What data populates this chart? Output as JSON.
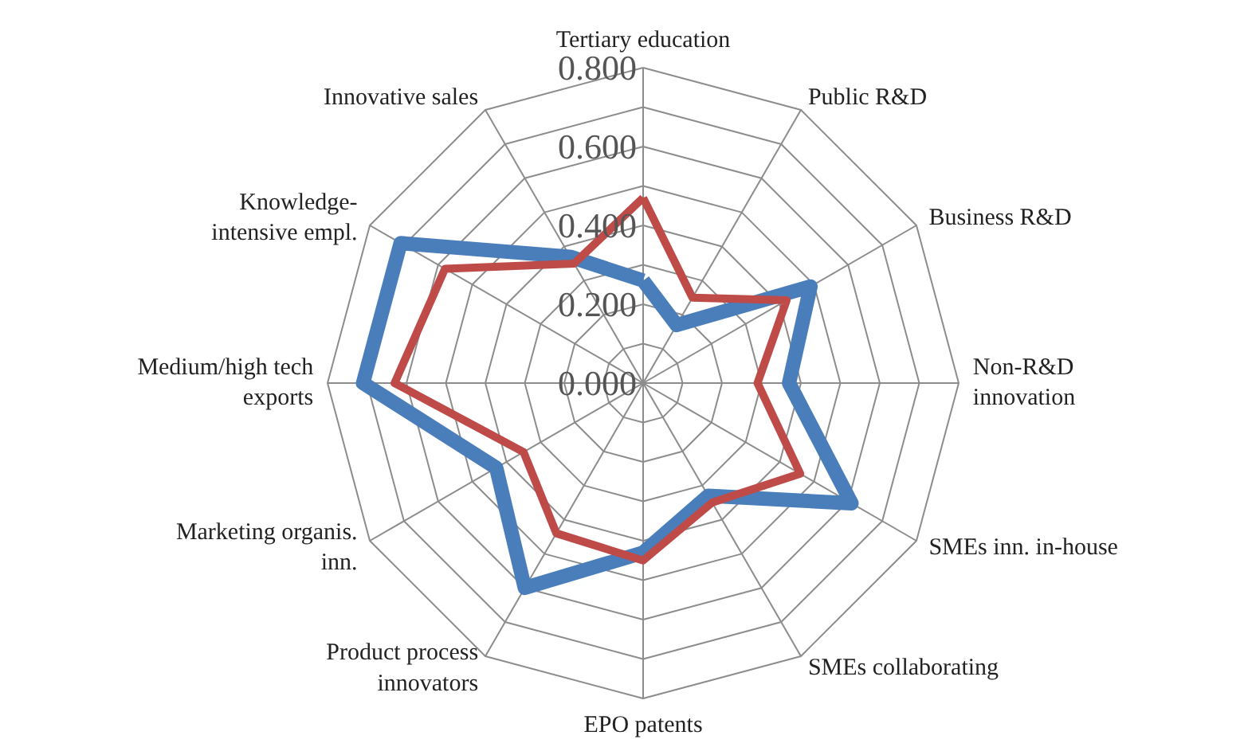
{
  "chart_data": {
    "type": "radar",
    "categories": [
      "Tertiary education",
      "Public R&D",
      "Business R&D",
      "Non-R&D\ninnovation",
      "SMEs inn. in-house",
      "SMEs collaborating",
      "EPO patents",
      "Product process\ninnovators",
      "Marketing organis.\ninn.",
      "Medium/high tech\nexports",
      "Knowledge-\nintensive empl.",
      "Innovative sales"
    ],
    "series": [
      {
        "color": "#4a7ebb",
        "values": [
          0.26,
          0.17,
          0.49,
          0.37,
          0.61,
          0.33,
          0.43,
          0.6,
          0.43,
          0.71,
          0.71,
          0.37
        ]
      },
      {
        "color": "#be4b48",
        "values": [
          0.47,
          0.25,
          0.42,
          0.29,
          0.46,
          0.35,
          0.45,
          0.44,
          0.35,
          0.63,
          0.58,
          0.35
        ]
      }
    ],
    "ylim": [
      0,
      0.8
    ],
    "yticks": [
      {
        "value": 0,
        "label": "0.000"
      },
      {
        "value": 0.2,
        "label": "0.200"
      },
      {
        "value": 0.4,
        "label": "0.400"
      },
      {
        "value": 0.6,
        "label": "0.600"
      },
      {
        "value": 0.8,
        "label": "0.800"
      }
    ]
  }
}
